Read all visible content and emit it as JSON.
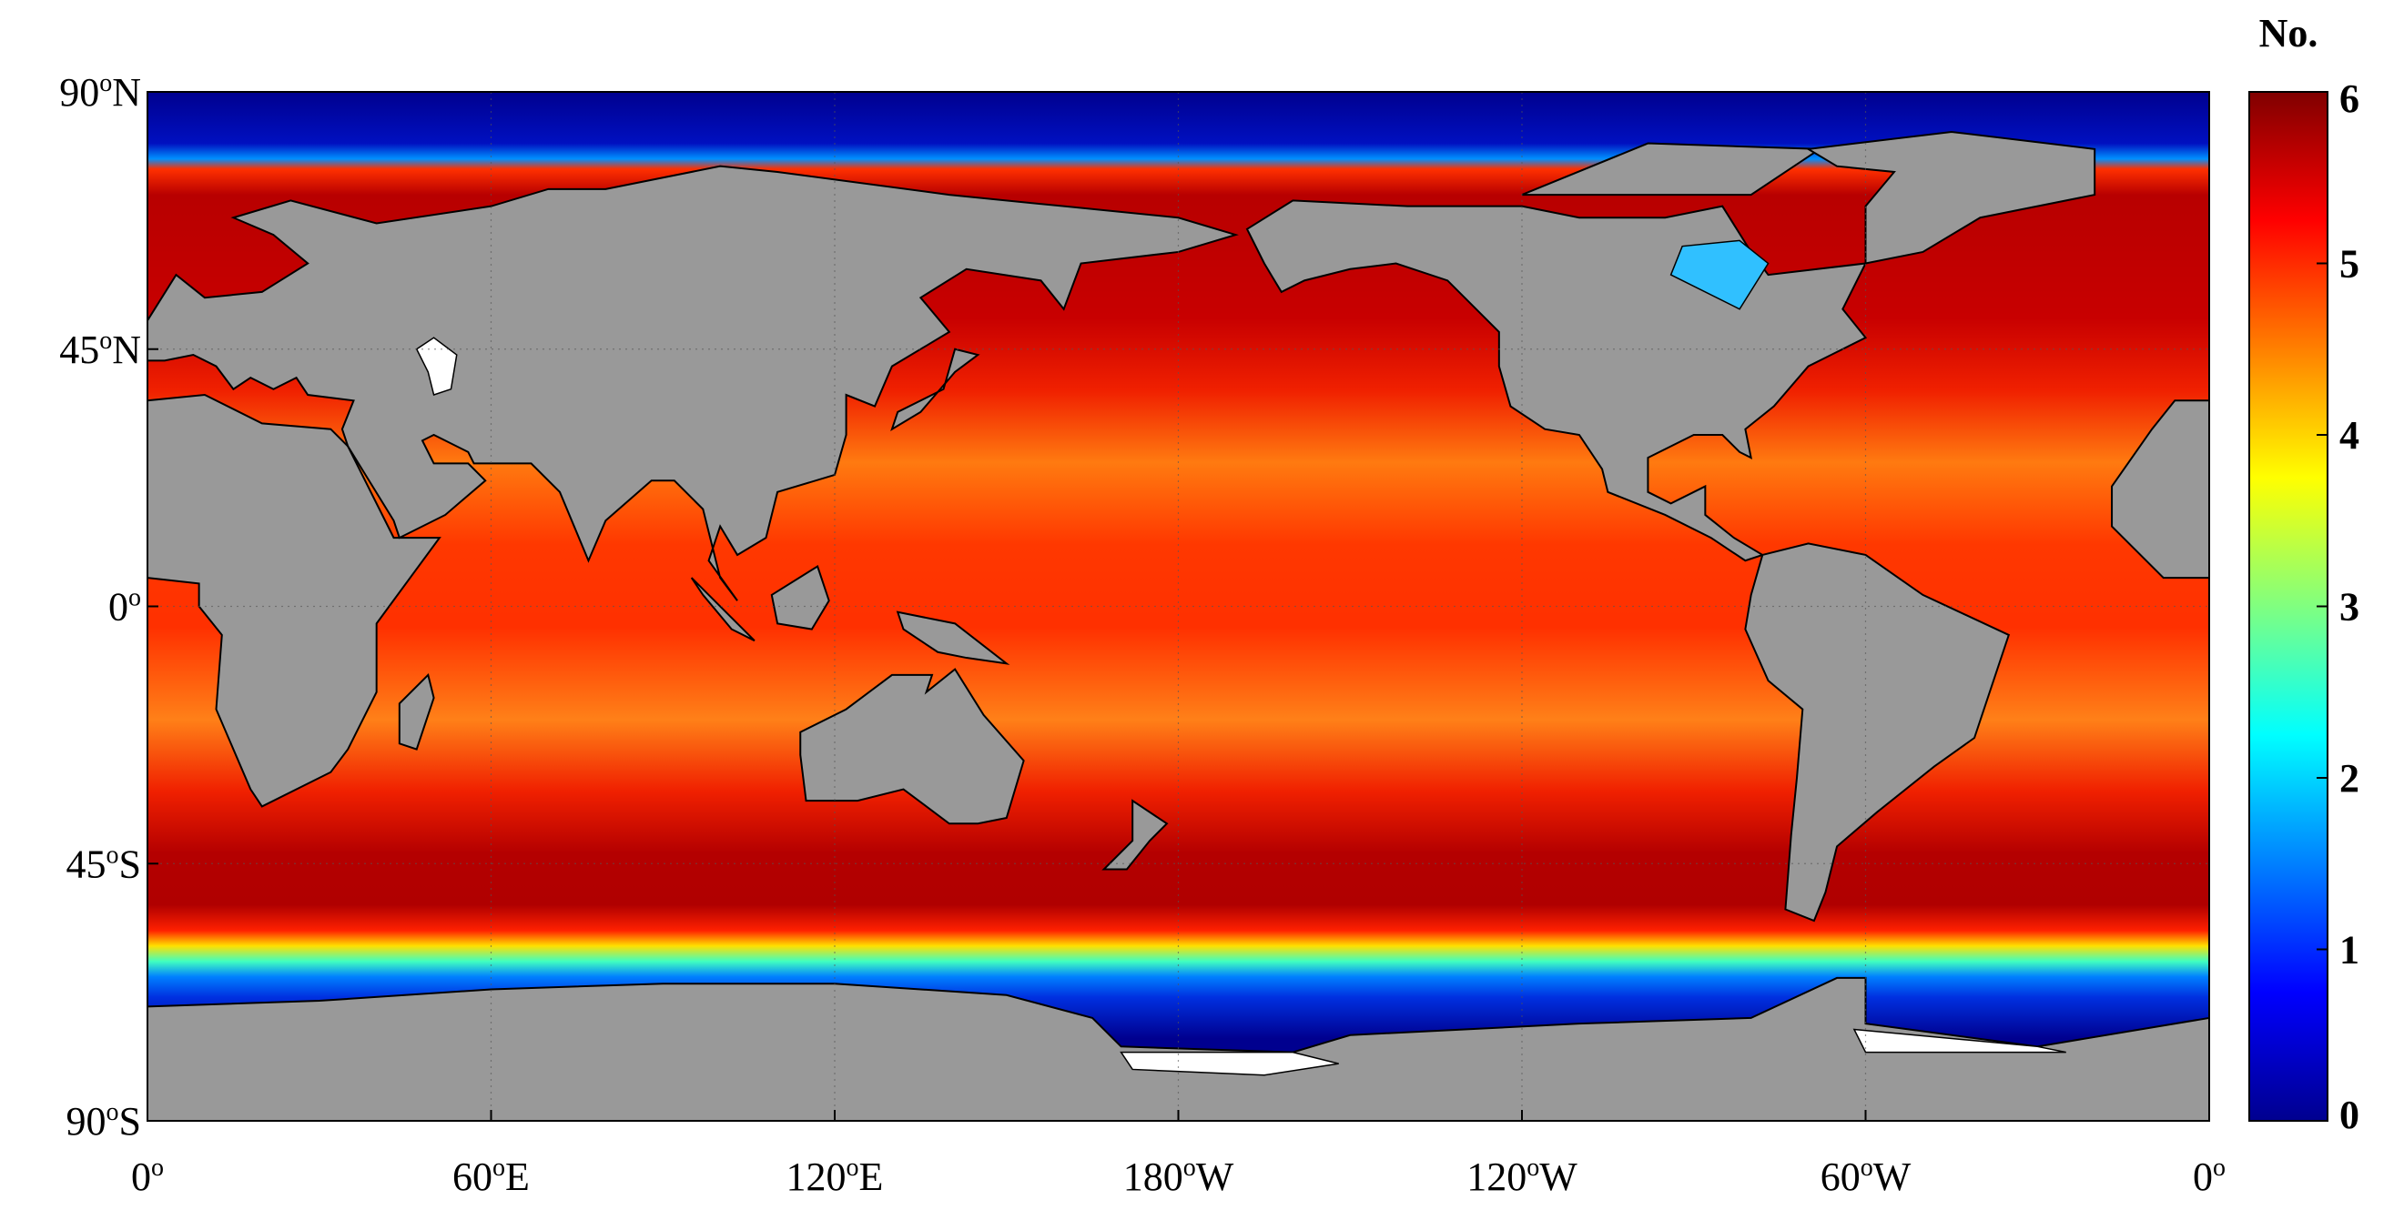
{
  "chart_data": {
    "type": "map",
    "colorbar_title": "No.",
    "colormap": [
      "#00008f",
      "#0000ff",
      "#0080ff",
      "#00ffff",
      "#80ff80",
      "#ffff00",
      "#ff8000",
      "#ff0000",
      "#800000"
    ],
    "clim": [
      0,
      6
    ],
    "cticks": [
      0,
      1,
      2,
      3,
      4,
      5,
      6
    ],
    "xlim": [
      0,
      360
    ],
    "xticks": [
      {
        "value": 0,
        "label": "0o"
      },
      {
        "value": 60,
        "label": "60oE"
      },
      {
        "value": 120,
        "label": "120oE"
      },
      {
        "value": 180,
        "label": "180oW"
      },
      {
        "value": 240,
        "label": "120oW"
      },
      {
        "value": 300,
        "label": "60oW"
      },
      {
        "value": 360,
        "label": "0o"
      }
    ],
    "ylim": [
      -90,
      90
    ],
    "yticks": [
      {
        "value": -90,
        "label": "90oS"
      },
      {
        "value": -45,
        "label": "45oS"
      },
      {
        "value": 0,
        "label": "0o"
      },
      {
        "value": 45,
        "label": "45oN"
      },
      {
        "value": 90,
        "label": "90oN"
      }
    ],
    "grid": true
  }
}
